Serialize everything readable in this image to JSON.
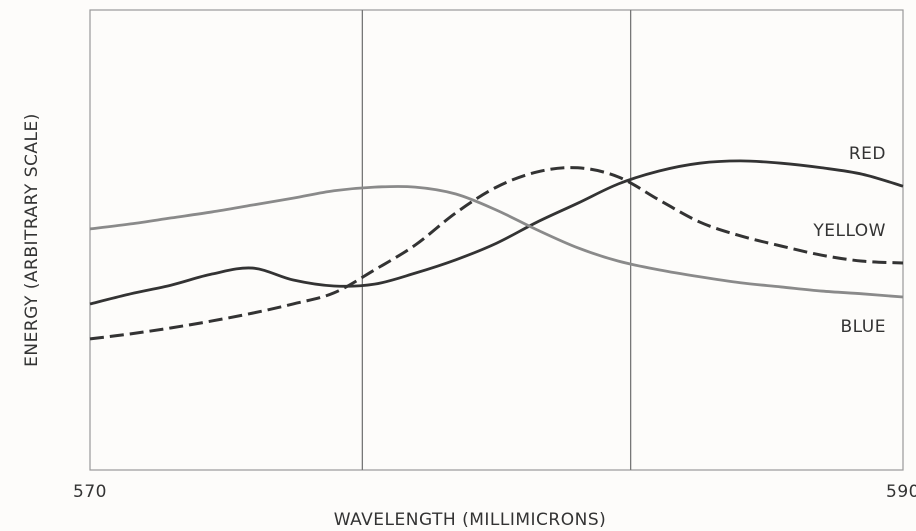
{
  "chart_data": {
    "type": "line",
    "x_label": "WAVELENGTH (MILLIMICRONS)",
    "y_label": "ENERGY (ARBITRARY SCALE)",
    "x": [
      570,
      571,
      572,
      573,
      574,
      575,
      576,
      577,
      578,
      579,
      580,
      581,
      582,
      583,
      584,
      585,
      586,
      587,
      588,
      589,
      590
    ],
    "xlim": [
      570,
      590
    ],
    "xticks": [
      570,
      590
    ],
    "xgrid": [
      576.7,
      583.3
    ],
    "ylim": [
      0,
      100
    ],
    "series": [
      {
        "name": "RED",
        "color": "#333333",
        "dashed": false,
        "values": [
          36.1,
          38.3,
          40.2,
          42.6,
          43.9,
          41.3,
          40.0,
          40.4,
          42.8,
          45.7,
          49.3,
          53.9,
          58.0,
          62.2,
          65.0,
          66.7,
          67.2,
          66.7,
          65.7,
          64.3,
          61.7
        ]
      },
      {
        "name": "YELLOW",
        "color": "#333333",
        "dashed": true,
        "values": [
          28.5,
          29.6,
          30.9,
          32.4,
          34.1,
          36.1,
          38.5,
          43.5,
          48.9,
          55.9,
          61.5,
          64.8,
          65.7,
          63.7,
          58.7,
          53.9,
          50.9,
          48.7,
          46.7,
          45.4,
          45.0
        ]
      },
      {
        "name": "BLUE",
        "color": "#8a8a8a",
        "dashed": false,
        "values": [
          52.4,
          53.5,
          54.8,
          56.1,
          57.6,
          59.1,
          60.7,
          61.5,
          61.5,
          60.0,
          56.5,
          52.2,
          48.3,
          45.4,
          43.5,
          42.0,
          40.7,
          39.8,
          38.9,
          38.3,
          37.6
        ]
      }
    ]
  }
}
